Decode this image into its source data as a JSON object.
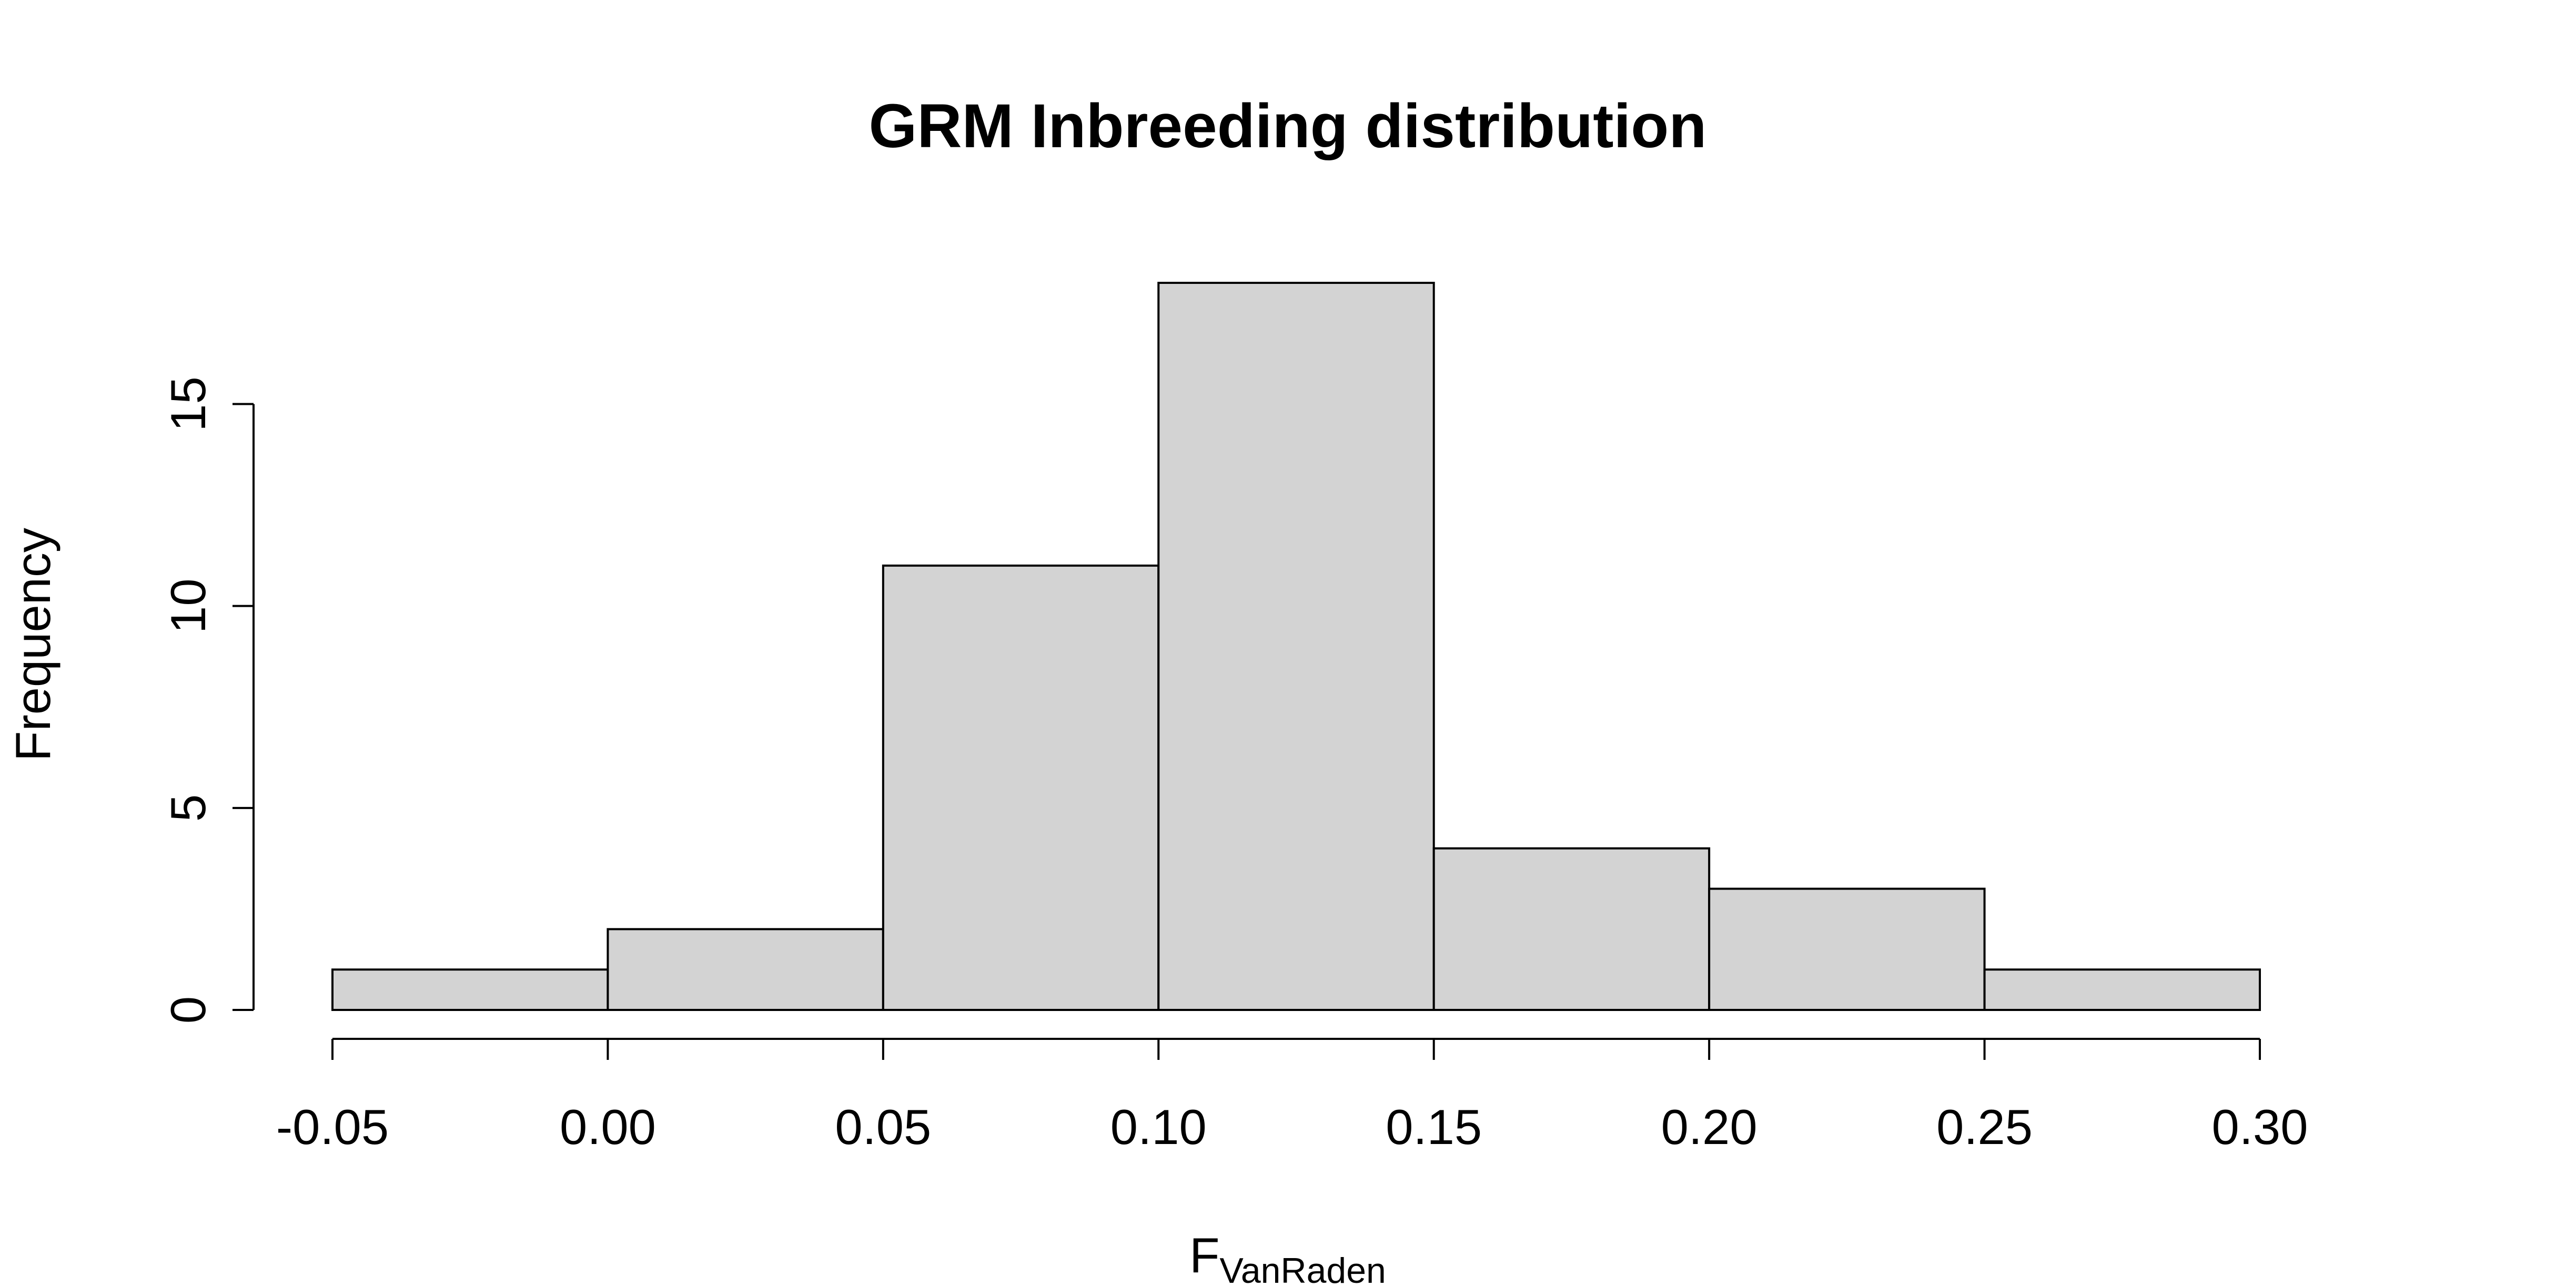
{
  "chart_data": {
    "type": "bar",
    "subtype": "histogram",
    "title": "GRM Inbreeding distribution",
    "xlabel": "F",
    "xlabel_subscript": "VanRaden",
    "ylabel": "Frequency",
    "bins": [
      {
        "from": -0.05,
        "to": 0.0,
        "count": 1
      },
      {
        "from": 0.0,
        "to": 0.05,
        "count": 2
      },
      {
        "from": 0.05,
        "to": 0.1,
        "count": 11
      },
      {
        "from": 0.1,
        "to": 0.15,
        "count": 18
      },
      {
        "from": 0.15,
        "to": 0.2,
        "count": 4
      },
      {
        "from": 0.2,
        "to": 0.25,
        "count": 3
      },
      {
        "from": 0.25,
        "to": 0.3,
        "count": 1
      }
    ],
    "xlim": [
      -0.05,
      0.3
    ],
    "ylim": [
      0,
      18
    ],
    "x_ticks": [
      -0.05,
      0.0,
      0.05,
      0.1,
      0.15,
      0.2,
      0.25,
      0.3
    ],
    "x_tick_labels": [
      "-0.05",
      "0.00",
      "0.05",
      "0.10",
      "0.15",
      "0.20",
      "0.25",
      "0.30"
    ],
    "y_ticks": [
      0,
      5,
      10,
      15
    ],
    "y_tick_labels": [
      "0",
      "5",
      "10",
      "15"
    ],
    "bar_fill": "#d3d3d3",
    "bar_stroke": "#000000",
    "grid": false,
    "legend": "none"
  }
}
